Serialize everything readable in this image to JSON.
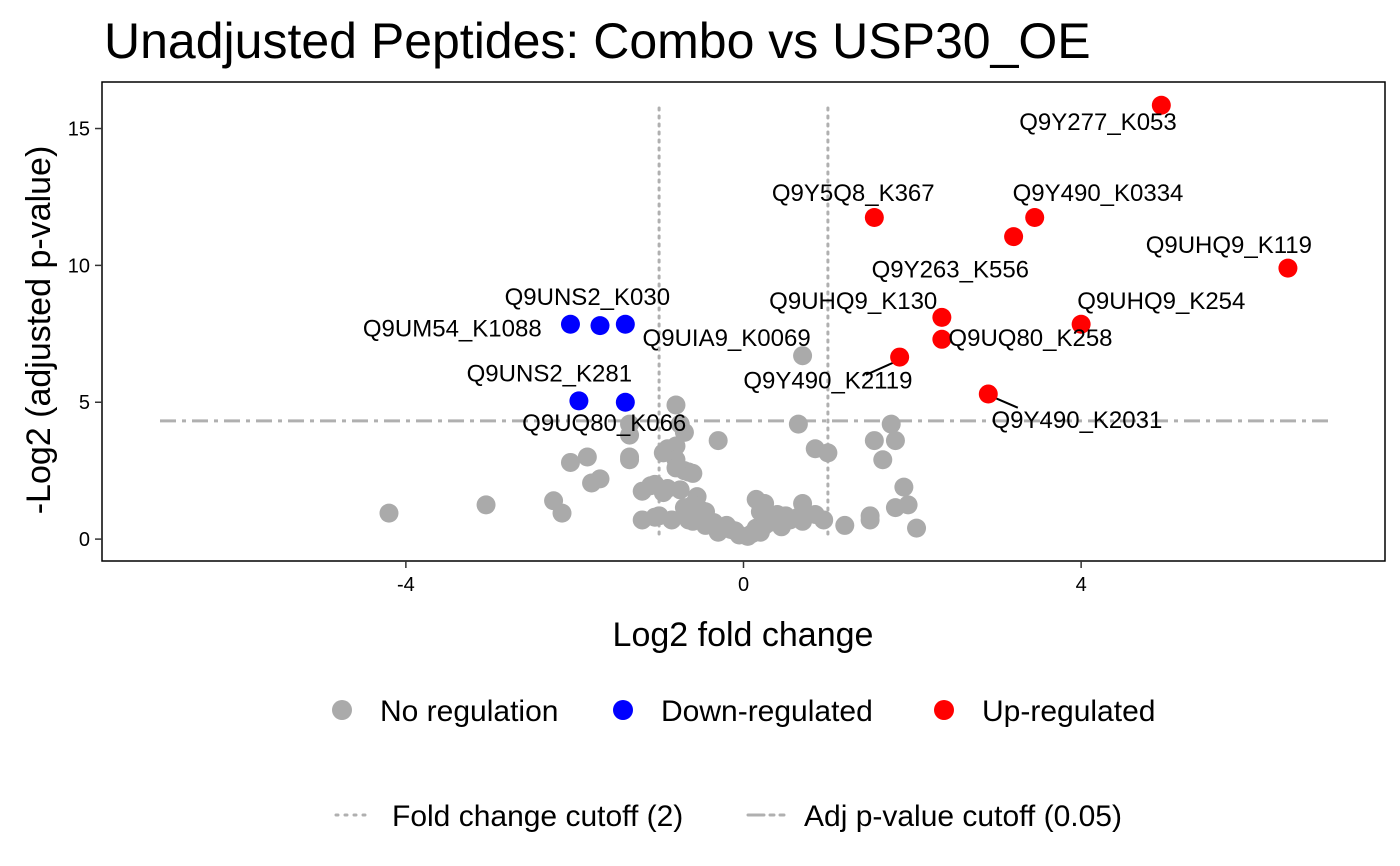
{
  "chart_data": {
    "type": "scatter",
    "title": "Unadjusted Peptides: Combo vs USP30_OE",
    "xlabel": "Log2 fold change",
    "ylabel": "-Log2 (adjusted p-value)",
    "xlim": [
      -7.6,
      7.6
    ],
    "ylim": [
      -0.8,
      16.7
    ],
    "xticks": [
      -4,
      0,
      4
    ],
    "yticks": [
      0,
      5,
      10,
      15
    ],
    "grid": false,
    "legend_position": "bottom",
    "fold_change_cutoff": [
      -1,
      1
    ],
    "pvalue_cutoff": 4.32,
    "colors": {
      "No regulation": "#aaaaaa",
      "Down-regulated": "#0000ff",
      "Up-regulated": "#ff0000",
      "cutoff_line": "#b0b0b0"
    },
    "legend": {
      "points": [
        {
          "label": "No regulation",
          "color": "#aaaaaa"
        },
        {
          "label": "Down-regulated",
          "color": "#0000ff"
        },
        {
          "label": "Up-regulated",
          "color": "#ff0000"
        }
      ],
      "lines": [
        {
          "label": "Fold change cutoff (2)",
          "style": "dotted"
        },
        {
          "label": "Adj p-value cutoff (0.05)",
          "style": "dashdot"
        }
      ]
    },
    "series": [
      {
        "name": "No regulation",
        "color": "#aaaaaa",
        "points": [
          [
            -4.2,
            0.95
          ],
          [
            -3.05,
            1.25
          ],
          [
            -2.25,
            1.4
          ],
          [
            -2.15,
            0.95
          ],
          [
            -2.05,
            2.8
          ],
          [
            -1.85,
            3.0
          ],
          [
            -1.8,
            2.05
          ],
          [
            -1.7,
            2.2
          ],
          [
            -1.35,
            3.8
          ],
          [
            -1.35,
            4.2
          ],
          [
            -1.35,
            3.0
          ],
          [
            -1.2,
            1.75
          ],
          [
            -1.1,
            1.95
          ],
          [
            -1.05,
            2.0
          ],
          [
            -0.95,
            1.7
          ],
          [
            -0.9,
            1.85
          ],
          [
            -1.2,
            0.7
          ],
          [
            -1.05,
            0.8
          ],
          [
            -1.0,
            0.85
          ],
          [
            -0.85,
            0.7
          ],
          [
            -0.8,
            4.9
          ],
          [
            -0.75,
            4.2
          ],
          [
            -0.8,
            3.4
          ],
          [
            -0.7,
            3.9
          ],
          [
            -0.9,
            3.3
          ],
          [
            -0.95,
            3.15
          ],
          [
            -0.8,
            2.9
          ],
          [
            -0.7,
            2.5
          ],
          [
            -0.65,
            2.45
          ],
          [
            -0.6,
            2.4
          ],
          [
            -0.8,
            2.6
          ],
          [
            -0.75,
            1.8
          ],
          [
            -0.55,
            1.55
          ],
          [
            -0.6,
            1.25
          ],
          [
            -0.7,
            1.15
          ],
          [
            -0.5,
            1.05
          ],
          [
            -0.45,
            1.0
          ],
          [
            -0.5,
            0.8
          ],
          [
            -0.65,
            0.7
          ],
          [
            -0.6,
            0.65
          ],
          [
            -0.4,
            0.55
          ],
          [
            -0.3,
            0.45
          ],
          [
            -0.2,
            0.5
          ],
          [
            -0.15,
            0.35
          ],
          [
            -0.1,
            0.3
          ],
          [
            -0.3,
            0.25
          ],
          [
            -0.05,
            0.15
          ],
          [
            0.05,
            0.1
          ],
          [
            0.1,
            0.2
          ],
          [
            0.2,
            0.25
          ],
          [
            0.15,
            0.4
          ],
          [
            0.25,
            0.5
          ],
          [
            0.3,
            0.6
          ],
          [
            0.35,
            0.75
          ],
          [
            0.4,
            0.9
          ],
          [
            0.2,
            1.0
          ],
          [
            0.15,
            1.45
          ],
          [
            0.25,
            1.3
          ],
          [
            0.5,
            0.85
          ],
          [
            0.55,
            0.7
          ],
          [
            0.65,
            0.8
          ],
          [
            0.7,
            1.3
          ],
          [
            0.7,
            0.65
          ],
          [
            0.85,
            0.9
          ],
          [
            0.95,
            0.7
          ],
          [
            0.65,
            4.2
          ],
          [
            0.85,
            3.3
          ],
          [
            1.0,
            3.15
          ],
          [
            1.2,
            0.5
          ],
          [
            0.7,
            6.7
          ],
          [
            1.5,
            0.85
          ],
          [
            1.5,
            0.7
          ],
          [
            1.55,
            3.6
          ],
          [
            1.65,
            2.9
          ],
          [
            1.75,
            4.2
          ],
          [
            1.8,
            3.6
          ],
          [
            1.8,
            1.15
          ],
          [
            1.9,
            1.9
          ],
          [
            1.95,
            1.25
          ],
          [
            2.05,
            0.4
          ],
          [
            -0.3,
            3.6
          ],
          [
            -1.35,
            2.9
          ],
          [
            -0.45,
            0.5
          ],
          [
            -0.35,
            0.6
          ],
          [
            0.45,
            0.45
          ]
        ]
      },
      {
        "name": "Down-regulated",
        "color": "#0000ff",
        "points": [
          [
            -2.05,
            7.85
          ],
          [
            -1.7,
            7.8
          ],
          [
            -1.4,
            7.85
          ],
          [
            -1.95,
            5.05
          ],
          [
            -1.4,
            5.0
          ]
        ]
      },
      {
        "name": "Up-regulated",
        "color": "#ff0000",
        "points": [
          [
            4.95,
            15.85
          ],
          [
            1.55,
            11.75
          ],
          [
            3.45,
            11.75
          ],
          [
            3.2,
            11.05
          ],
          [
            6.45,
            9.9
          ],
          [
            2.35,
            8.1
          ],
          [
            4.0,
            7.85
          ],
          [
            2.35,
            7.3
          ],
          [
            1.85,
            6.65
          ],
          [
            2.9,
            5.3
          ]
        ]
      }
    ],
    "annotations": [
      {
        "text": "Q9Y277_K053",
        "x": 4.2,
        "y": 14.95
      },
      {
        "text": "Q9Y5Q8_K367",
        "x": 1.3,
        "y": 12.35
      },
      {
        "text": "Q9Y490_K0334",
        "x": 4.2,
        "y": 12.35
      },
      {
        "text": "Q9UHQ9_K119",
        "x": 5.75,
        "y": 10.45
      },
      {
        "text": "Q9Y263_K556",
        "x": 2.45,
        "y": 9.55
      },
      {
        "text": "Q9UNS2_K030",
        "x": -1.85,
        "y": 8.55
      },
      {
        "text": "Q9UHQ9_K130",
        "x": 1.3,
        "y": 8.4
      },
      {
        "text": "Q9UHQ9_K254",
        "x": 4.95,
        "y": 8.4
      },
      {
        "text": "Q9UM54_K1088",
        "x": -3.45,
        "y": 7.4
      },
      {
        "text": "Q9UIA9_K0069",
        "x": -0.2,
        "y": 7.05
      },
      {
        "text": "Q9UQ80_K258",
        "x": 3.4,
        "y": 7.05
      },
      {
        "text": "Q9UNS2_K281",
        "x": -2.3,
        "y": 5.75
      },
      {
        "text": "Q9Y490_K2119",
        "x": 1.0,
        "y": 5.5
      },
      {
        "text": "Q9UQ80_K066",
        "x": -1.65,
        "y": 3.95
      },
      {
        "text": "Q9Y490_K2031",
        "x": 3.95,
        "y": 4.05
      }
    ],
    "connectors": [
      {
        "from": [
          1.45,
          6.0
        ],
        "to": [
          1.85,
          6.55
        ]
      },
      {
        "from": [
          2.95,
          5.2
        ],
        "to": [
          3.25,
          4.8
        ]
      }
    ]
  }
}
